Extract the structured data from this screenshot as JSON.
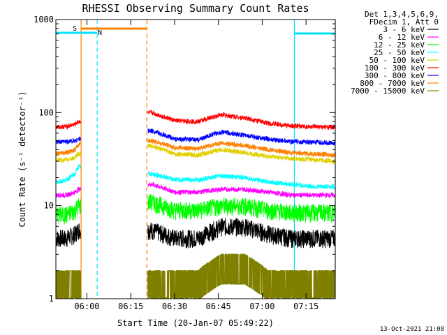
{
  "chart_data": {
    "type": "line",
    "title": "RHESSI Observing Summary Count Rates",
    "xlabel": "Start Time (20-Jan-07 05:49:22)",
    "ylabel": "Count Rate (s⁻¹ detector⁻¹)",
    "y_scale": "log",
    "ylim": [
      1,
      1000
    ],
    "xlim": [
      "05:49:22",
      "07:25:00"
    ],
    "x_ticks": [
      "06:00",
      "06:15",
      "06:30",
      "06:45",
      "07:00",
      "07:15"
    ],
    "y_ticks": [
      "1",
      "10",
      "100",
      "1000"
    ],
    "timestamp": "13-Oct-2021 21:08",
    "legend": {
      "header": [
        "Det 1,3,4,5,6,9,",
        "FDecim 1, Att 0"
      ],
      "placement": "right"
    },
    "flags": [
      {
        "label": "S",
        "color": "#ff8000",
        "start": "05:58:00",
        "end": "06:20:30"
      },
      {
        "label": "N",
        "color": "#00e0ff",
        "start": "05:49:22",
        "end": "06:03:30"
      },
      {
        "label": "",
        "color": "#00e0ff",
        "start": "07:11:00",
        "end": "07:25:00"
      }
    ],
    "vlines": [
      {
        "time": "05:58:00",
        "color": "#ff8000",
        "style": "solid"
      },
      {
        "time": "06:03:30",
        "color": "#00e0ff",
        "style": "dashed"
      },
      {
        "time": "06:20:30",
        "color": "#ff8000",
        "style": "dashed"
      },
      {
        "time": "07:11:00",
        "color": "#00e0ff",
        "style": "solid"
      },
      {
        "time": "07:25:00",
        "color": "#00e0ff",
        "style": "dashed"
      }
    ],
    "x": [
      "05:50",
      "05:53",
      "05:56",
      "05:57",
      "06:22",
      "06:30",
      "06:38",
      "06:46",
      "06:54",
      "07:02",
      "07:10",
      "07:18",
      "07:25"
    ],
    "series": [
      {
        "name": "3 - 6 keV",
        "color": "#000000",
        "values": [
          4.5,
          4.5,
          5.0,
          5.5,
          5.5,
          4.5,
          4.5,
          6.0,
          6.0,
          5.0,
          4.5,
          4.5,
          4.5
        ]
      },
      {
        "name": "6 - 12 keV",
        "color": "#ff00ff",
        "values": [
          13,
          13,
          14,
          15,
          17,
          14,
          14,
          15,
          15,
          14,
          13,
          13,
          13
        ]
      },
      {
        "name": "12 - 25 keV",
        "color": "#00ff00",
        "values": [
          8,
          8,
          9,
          10,
          11,
          9,
          9,
          10,
          10,
          9,
          8.5,
          8.5,
          8.5
        ]
      },
      {
        "name": "25 - 50 keV",
        "color": "#00ffff",
        "values": [
          18,
          19,
          22,
          26,
          22,
          19,
          19,
          21,
          20,
          18,
          17,
          16,
          16
        ]
      },
      {
        "name": "50 - 100 keV",
        "color": "#e0d000",
        "values": [
          31,
          31,
          33,
          36,
          44,
          36,
          35,
          40,
          37,
          34,
          32,
          31,
          30
        ]
      },
      {
        "name": "100 - 300 keV",
        "color": "#ff0000",
        "values": [
          70,
          71,
          75,
          80,
          100,
          82,
          80,
          95,
          88,
          77,
          72,
          70,
          70
        ]
      },
      {
        "name": "300 - 800 keV",
        "color": "#0000ff",
        "values": [
          48,
          49,
          50,
          52,
          64,
          52,
          51,
          62,
          57,
          52,
          49,
          48,
          47
        ]
      },
      {
        "name": "800 - 7000 keV",
        "color": "#ff8000",
        "values": [
          36,
          37,
          40,
          45,
          50,
          42,
          41,
          47,
          44,
          40,
          37,
          36,
          35
        ]
      },
      {
        "name": "7000 - 15000 keV",
        "color": "#808000",
        "values": [
          1.6,
          1.6,
          1.6,
          1.6,
          1.6,
          1.6,
          1.6,
          2.4,
          2.4,
          1.6,
          1.6,
          1.6,
          1.6
        ]
      }
    ]
  }
}
